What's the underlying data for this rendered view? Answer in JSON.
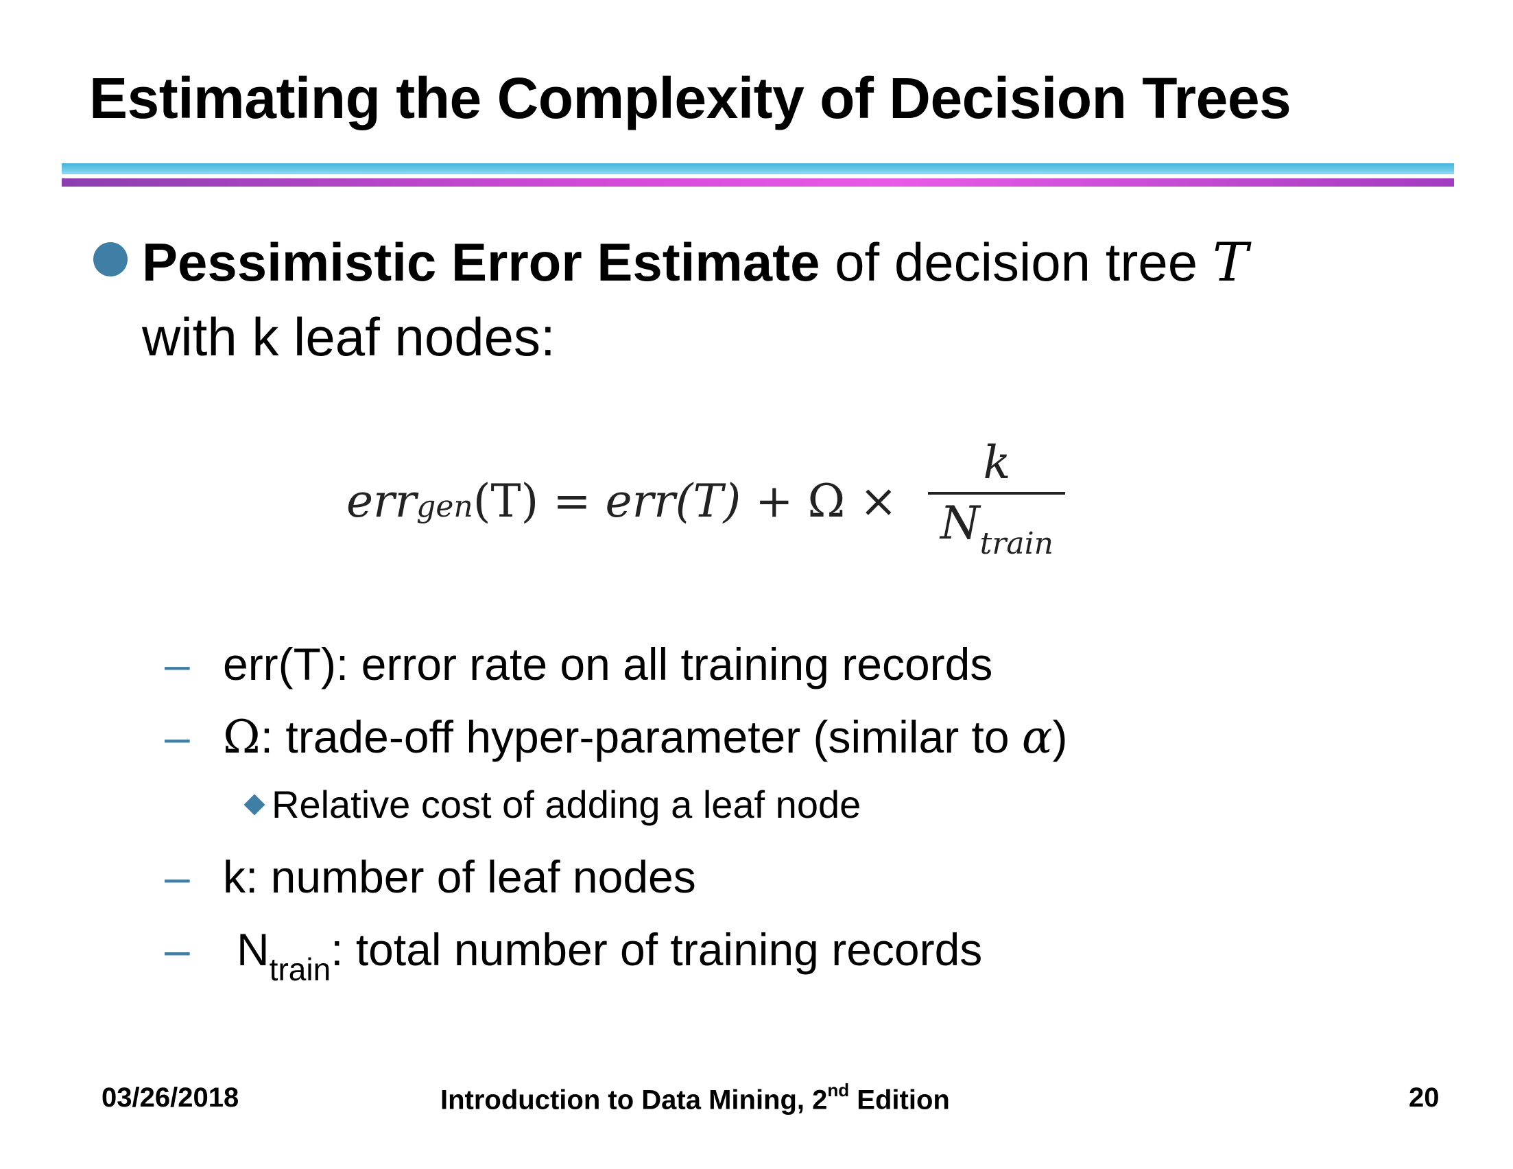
{
  "slide": {
    "title": "Estimating the Complexity of Decision Trees",
    "main_point": {
      "bold_text": "Pessimistic Error Estimate",
      "text_after": " of decision tree ",
      "tree_symbol": "T",
      "line2": "with k leaf nodes:"
    },
    "formula": {
      "lhs": "err",
      "lhs_sub": "gen",
      "lhs_arg": "(T)",
      "equals": " = ",
      "rhs_err": "err(T)",
      "plus": " + Ω × ",
      "fraction_num": "k",
      "fraction_den": "N",
      "fraction_den_sub": "train"
    },
    "items": [
      {
        "dash": "–",
        "text": "err(T): error rate on all training records"
      },
      {
        "dash": "–",
        "omega": "Ω",
        "text": ": trade-off hyper-parameter (similar to ",
        "alpha": "α",
        "close": ")"
      },
      {
        "dash": "–",
        "text": "k: number of leaf nodes"
      },
      {
        "dash": "–",
        "n": "N",
        "n_sub": "train",
        "text": ": total number of training records"
      }
    ],
    "sub_bullet": "Relative cost of adding a leaf node",
    "footer": {
      "date": "03/26/2018",
      "book_prefix": "Introduction to Data Mining, 2",
      "book_sup": "nd",
      "book_suffix": " Edition",
      "page": "20"
    },
    "colors": {
      "accent": "#3f7fa6",
      "rule_blue": "#46b3dc",
      "rule_purple": "#d44bd8"
    }
  }
}
